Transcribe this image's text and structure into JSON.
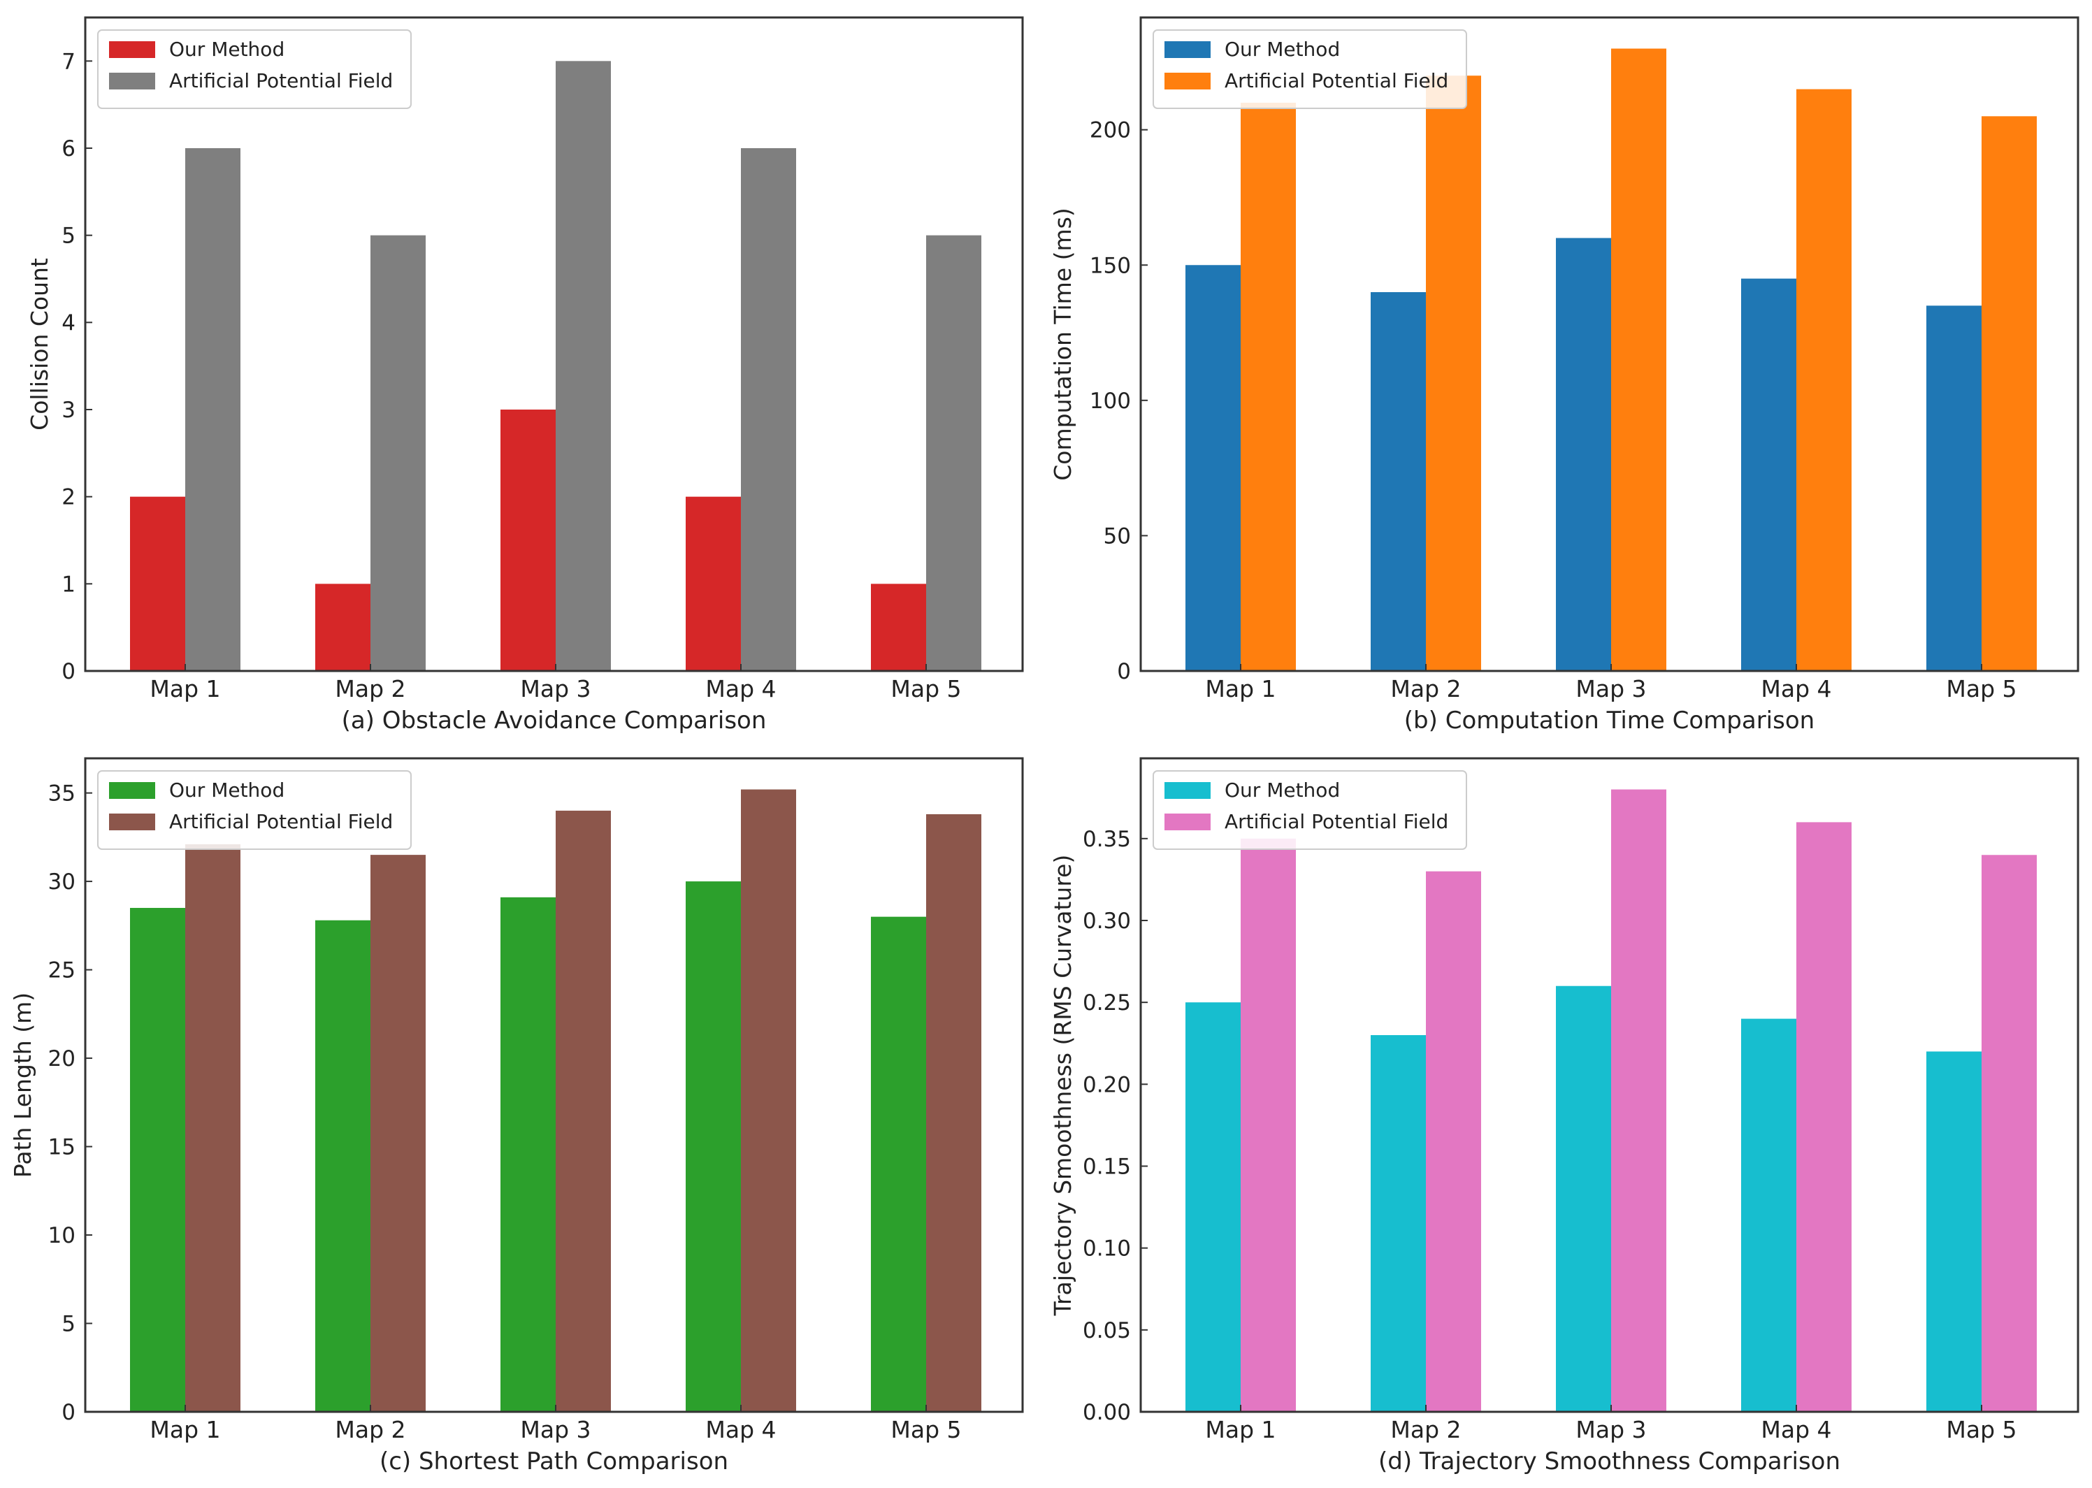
{
  "figure": {
    "background": "#ffffff",
    "axis_color": "#333333"
  },
  "chart_data": [
    {
      "type": "bar",
      "caption": "(a) Obstacle Avoidance Comparison",
      "xlabel": "",
      "ylabel": "Collision Count",
      "categories": [
        "Map 1",
        "Map 2",
        "Map 3",
        "Map 4",
        "Map 5"
      ],
      "ylim": [
        0,
        7.5
      ],
      "yticks": [
        0,
        1,
        2,
        3,
        4,
        5,
        6,
        7
      ],
      "ytick_labels": [
        "0",
        "1",
        "2",
        "3",
        "4",
        "5",
        "6",
        "7"
      ],
      "legend_position": "top-left",
      "series": [
        {
          "name": "Our Method",
          "color": "#d62728",
          "values": [
            2,
            1,
            3,
            2,
            1
          ]
        },
        {
          "name": "Artificial Potential Field",
          "color": "#7f7f7f",
          "values": [
            6,
            5,
            7,
            6,
            5
          ]
        }
      ]
    },
    {
      "type": "bar",
      "caption": "(b) Computation Time Comparison",
      "xlabel": "",
      "ylabel": "Computation Time (ms)",
      "categories": [
        "Map 1",
        "Map 2",
        "Map 3",
        "Map 4",
        "Map 5"
      ],
      "ylim": [
        0,
        241.5
      ],
      "yticks": [
        0,
        50,
        100,
        150,
        200
      ],
      "ytick_labels": [
        "0",
        "50",
        "100",
        "150",
        "200"
      ],
      "legend_position": "top-left",
      "series": [
        {
          "name": "Our Method",
          "color": "#1f77b4",
          "values": [
            150,
            140,
            160,
            145,
            135
          ]
        },
        {
          "name": "Artificial Potential Field",
          "color": "#ff7f0e",
          "values": [
            210,
            220,
            230,
            215,
            205
          ]
        }
      ]
    },
    {
      "type": "bar",
      "caption": "(c) Shortest Path Comparison",
      "xlabel": "",
      "ylabel": "Path Length (m)",
      "categories": [
        "Map 1",
        "Map 2",
        "Map 3",
        "Map 4",
        "Map 5"
      ],
      "ylim": [
        0,
        36.96
      ],
      "yticks": [
        0,
        5,
        10,
        15,
        20,
        25,
        30,
        35
      ],
      "ytick_labels": [
        "0",
        "5",
        "10",
        "15",
        "20",
        "25",
        "30",
        "35"
      ],
      "legend_position": "top-left",
      "series": [
        {
          "name": "Our Method",
          "color": "#2ca02c",
          "values": [
            28.5,
            27.8,
            29.1,
            30.0,
            28.0
          ]
        },
        {
          "name": "Artificial Potential Field",
          "color": "#8c564b",
          "values": [
            32.1,
            31.5,
            34.0,
            35.2,
            33.8
          ]
        }
      ]
    },
    {
      "type": "bar",
      "caption": "(d) Trajectory Smoothness Comparison",
      "xlabel": "",
      "ylabel": "Trajectory Smoothness (RMS Curvature)",
      "categories": [
        "Map 1",
        "Map 2",
        "Map 3",
        "Map 4",
        "Map 5"
      ],
      "ylim": [
        0,
        0.399
      ],
      "yticks": [
        0,
        0.05,
        0.1,
        0.15,
        0.2,
        0.25,
        0.3,
        0.35
      ],
      "ytick_labels": [
        "0.00",
        "0.05",
        "0.10",
        "0.15",
        "0.20",
        "0.25",
        "0.30",
        "0.35"
      ],
      "legend_position": "top-left",
      "series": [
        {
          "name": "Our Method",
          "color": "#17becf",
          "values": [
            0.25,
            0.23,
            0.26,
            0.24,
            0.22
          ]
        },
        {
          "name": "Artificial Potential Field",
          "color": "#e377c2",
          "values": [
            0.35,
            0.33,
            0.38,
            0.36,
            0.34
          ]
        }
      ]
    }
  ]
}
